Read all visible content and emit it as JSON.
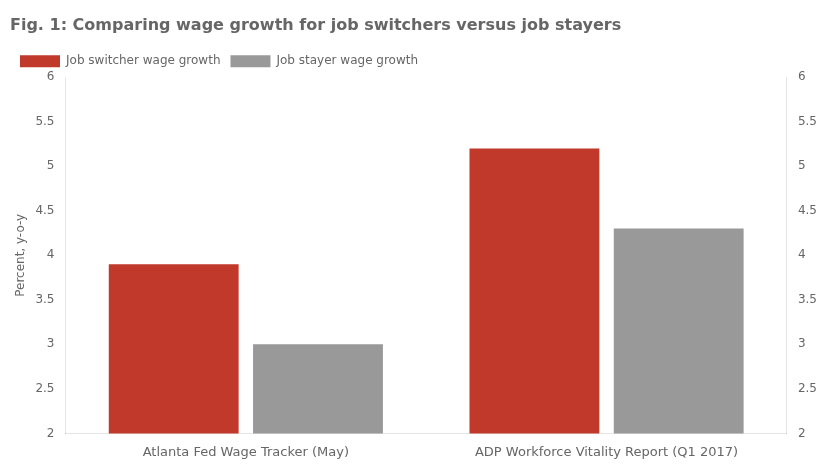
{
  "chart_data": {
    "type": "bar",
    "title": "Fig. 1: Comparing wage growth for job switchers versus job stayers",
    "ylabel": "Percent, y-o-y",
    "categories": [
      "Atlanta Fed Wage Tracker (May)",
      "ADP Workforce Vitality Report (Q1 2017)"
    ],
    "series": [
      {
        "name": "Job switcher wage growth",
        "color": "#C0392B",
        "values": [
          3.9,
          5.2
        ]
      },
      {
        "name": "Job stayer wage growth",
        "color": "#999999",
        "values": [
          3.0,
          4.3
        ]
      }
    ],
    "ylim": [
      2,
      6
    ],
    "yticks": [
      2,
      2.5,
      3,
      3.5,
      4,
      4.5,
      5,
      5.5,
      6
    ],
    "y2lim": [
      2,
      6
    ],
    "y2ticks": [
      2,
      2.5,
      3,
      3.5,
      4,
      4.5,
      5,
      5.5,
      6
    ],
    "grid": false,
    "legend": "upper left"
  }
}
